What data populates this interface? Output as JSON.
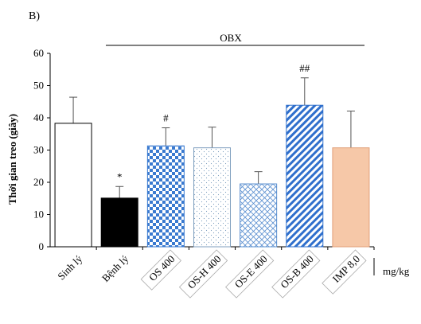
{
  "panel_label": "B)",
  "group_label": "OBX",
  "unit_label": "mg/kg",
  "chart_data": {
    "type": "bar",
    "ylabel": "Thời gian treo (giây)",
    "xlabel": "",
    "ylim": [
      0,
      60
    ],
    "yticks": [
      0,
      10,
      20,
      30,
      40,
      50,
      60
    ],
    "grid": false,
    "categories": [
      "Sinh lý",
      "Bệnh lý",
      "OS 400",
      "OS-H 400",
      "OS-E 400",
      "OS-B 400",
      "IMP 8,0"
    ],
    "values": [
      38.3,
      15.1,
      31.3,
      30.7,
      19.5,
      43.9,
      30.7
    ],
    "errors": [
      8.1,
      3.6,
      5.6,
      6.4,
      3.8,
      8.5,
      11.4
    ],
    "annotations": [
      "",
      "*",
      "#",
      "",
      "",
      "##",
      ""
    ],
    "boxed_labels": [
      false,
      false,
      true,
      true,
      true,
      true,
      true
    ],
    "bar_styles": [
      {
        "fill": "white"
      },
      {
        "fill": "black"
      },
      {
        "fill": "checker",
        "color": "#3a7ad0"
      },
      {
        "fill": "dots",
        "color": "#7f9fbf"
      },
      {
        "fill": "crosshatch",
        "color": "#5a8fd0"
      },
      {
        "fill": "diagonal",
        "color": "#2f6fcc"
      },
      {
        "fill": "solid",
        "color": "#f6c8a8"
      }
    ]
  }
}
